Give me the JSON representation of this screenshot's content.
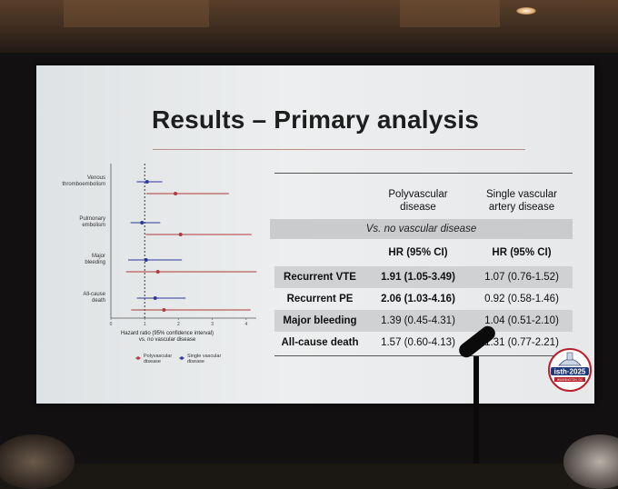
{
  "slide": {
    "title": "Results – Primary analysis"
  },
  "table": {
    "columns": [
      "",
      "Polyvascular disease",
      "Single vascular artery disease"
    ],
    "col1_line1": "Polyvascular",
    "col1_line2": "disease",
    "col2_line1": "Single vascular",
    "col2_line2": "artery disease",
    "subheader": "Vs. no vascular disease",
    "metric_label": "HR (95% CI)",
    "rows": [
      {
        "label": "Recurrent VTE",
        "poly": "1.91 (1.05-3.49)",
        "single": "1.07 (0.76-1.52)",
        "poly_bold": true
      },
      {
        "label": "Recurrent PE",
        "poly": "2.06 (1.03-4.16)",
        "single": "0.92 (0.58-1.46)",
        "poly_bold": true
      },
      {
        "label": "Major bleeding",
        "poly": "1.39 (0.45-4.31)",
        "single": "1.04 (0.51-2.10)",
        "poly_bold": false
      },
      {
        "label": "All-cause death",
        "poly": "1.57 (0.60-4.13)",
        "single": "1.31 (0.77-2.21)",
        "poly_bold": false
      }
    ]
  },
  "chart_data": {
    "type": "scatter",
    "xlabel": "Hazard ratio (95% confidence interval) vs. no vascular disease",
    "xlabel_line1": "Hazard ratio (95% confidence interval)",
    "xlabel_line2": "vs. no vascular disease",
    "xlim": [
      0,
      4.3
    ],
    "x_ticks": [
      0,
      1,
      2,
      3,
      4
    ],
    "reference_line": 1,
    "outcomes": [
      {
        "label_line1": "Venous",
        "label_line2": "thromboembolism"
      },
      {
        "label_line1": "Pulmonary",
        "label_line2": "embolism"
      },
      {
        "label_line1": "Major",
        "label_line2": "bleeding"
      },
      {
        "label_line1": "All-cause",
        "label_line2": "death"
      }
    ],
    "series": [
      {
        "name": "Single vascular disease",
        "color": "#2b3a9a",
        "points": [
          {
            "hr": 1.07,
            "low": 0.76,
            "high": 1.52
          },
          {
            "hr": 0.92,
            "low": 0.58,
            "high": 1.46
          },
          {
            "hr": 1.04,
            "low": 0.51,
            "high": 2.1
          },
          {
            "hr": 1.31,
            "low": 0.77,
            "high": 2.21
          }
        ]
      },
      {
        "name": "Polyvascular disease",
        "color": "#b03a3a",
        "points": [
          {
            "hr": 1.91,
            "low": 1.05,
            "high": 3.49
          },
          {
            "hr": 2.06,
            "low": 1.03,
            "high": 4.16
          },
          {
            "hr": 1.39,
            "low": 0.45,
            "high": 4.31
          },
          {
            "hr": 1.57,
            "low": 0.6,
            "high": 4.13
          }
        ]
      }
    ],
    "legend": [
      {
        "line1": "Polyvascular",
        "line2": "disease",
        "color": "#b03a3a"
      },
      {
        "line1": "Single vascular",
        "line2": "disease",
        "color": "#2b3a9a"
      }
    ]
  },
  "logo": {
    "text": "isth·2025",
    "banner": "WASHINGTON, DC"
  }
}
